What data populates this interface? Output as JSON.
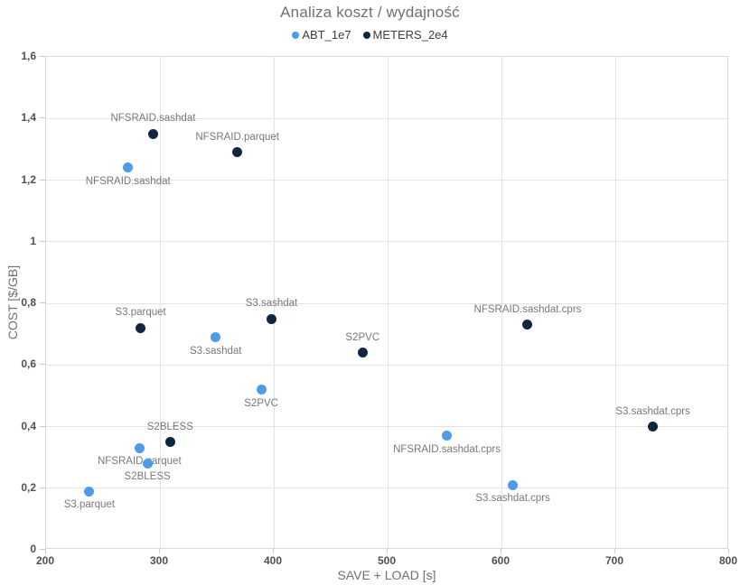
{
  "chart_data": {
    "type": "scatter",
    "title": "Analiza koszt / wydajność",
    "xlabel": "SAVE + LOAD [s]",
    "ylabel": "COST [$/GB]",
    "xlim": [
      200,
      800
    ],
    "ylim": [
      0,
      1.6
    ],
    "grid": true,
    "legend_position": "top",
    "x_ticks": [
      {
        "value": 200,
        "label": "200"
      },
      {
        "value": 300,
        "label": "300"
      },
      {
        "value": 400,
        "label": "400"
      },
      {
        "value": 500,
        "label": "500"
      },
      {
        "value": 600,
        "label": "600"
      },
      {
        "value": 700,
        "label": "700"
      },
      {
        "value": 800,
        "label": "800"
      }
    ],
    "y_ticks": [
      {
        "value": 0,
        "label": "0"
      },
      {
        "value": 0.2,
        "label": "0,2"
      },
      {
        "value": 0.4,
        "label": "0,4"
      },
      {
        "value": 0.6,
        "label": "0,6"
      },
      {
        "value": 0.8,
        "label": "0,8"
      },
      {
        "value": 1,
        "label": "1"
      },
      {
        "value": 1.2,
        "label": "1,2"
      },
      {
        "value": 1.4,
        "label": "1,4"
      },
      {
        "value": 1.6,
        "label": "1,6"
      }
    ],
    "series": [
      {
        "name": "ABT_1e7",
        "color": "#4d9be9",
        "label_position": "below",
        "points": [
          {
            "x": 272,
            "y": 1.24,
            "label": "NFSRAID.sashdat"
          },
          {
            "x": 349,
            "y": 0.69,
            "label": "S3.sashdat"
          },
          {
            "x": 389,
            "y": 0.52,
            "label": "S2PVC"
          },
          {
            "x": 282,
            "y": 0.33,
            "label": "NFSRAID.parquet"
          },
          {
            "x": 289,
            "y": 0.28,
            "label": "S2BLESS"
          },
          {
            "x": 238,
            "y": 0.19,
            "label": "S3.parquet"
          },
          {
            "x": 552,
            "y": 0.37,
            "label": "NFSRAID.sashdat.cprs"
          },
          {
            "x": 610,
            "y": 0.21,
            "label": "S3.sashdat.cprs"
          }
        ]
      },
      {
        "name": "METERS_2e4",
        "color": "#10253f",
        "label_position": "above",
        "points": [
          {
            "x": 294,
            "y": 1.35,
            "label": "NFSRAID.sashdat"
          },
          {
            "x": 368,
            "y": 1.29,
            "label": "NFSRAID.parquet"
          },
          {
            "x": 283,
            "y": 0.72,
            "label": "S3.parquet"
          },
          {
            "x": 398,
            "y": 0.75,
            "label": "S3.sashdat"
          },
          {
            "x": 478,
            "y": 0.64,
            "label": "S2PVC"
          },
          {
            "x": 309,
            "y": 0.35,
            "label": "S2BLESS"
          },
          {
            "x": 623,
            "y": 0.73,
            "label": "NFSRAID.sashdat.cprs"
          },
          {
            "x": 733,
            "y": 0.4,
            "label": "S3.sashdat.cprs"
          }
        ]
      }
    ]
  }
}
